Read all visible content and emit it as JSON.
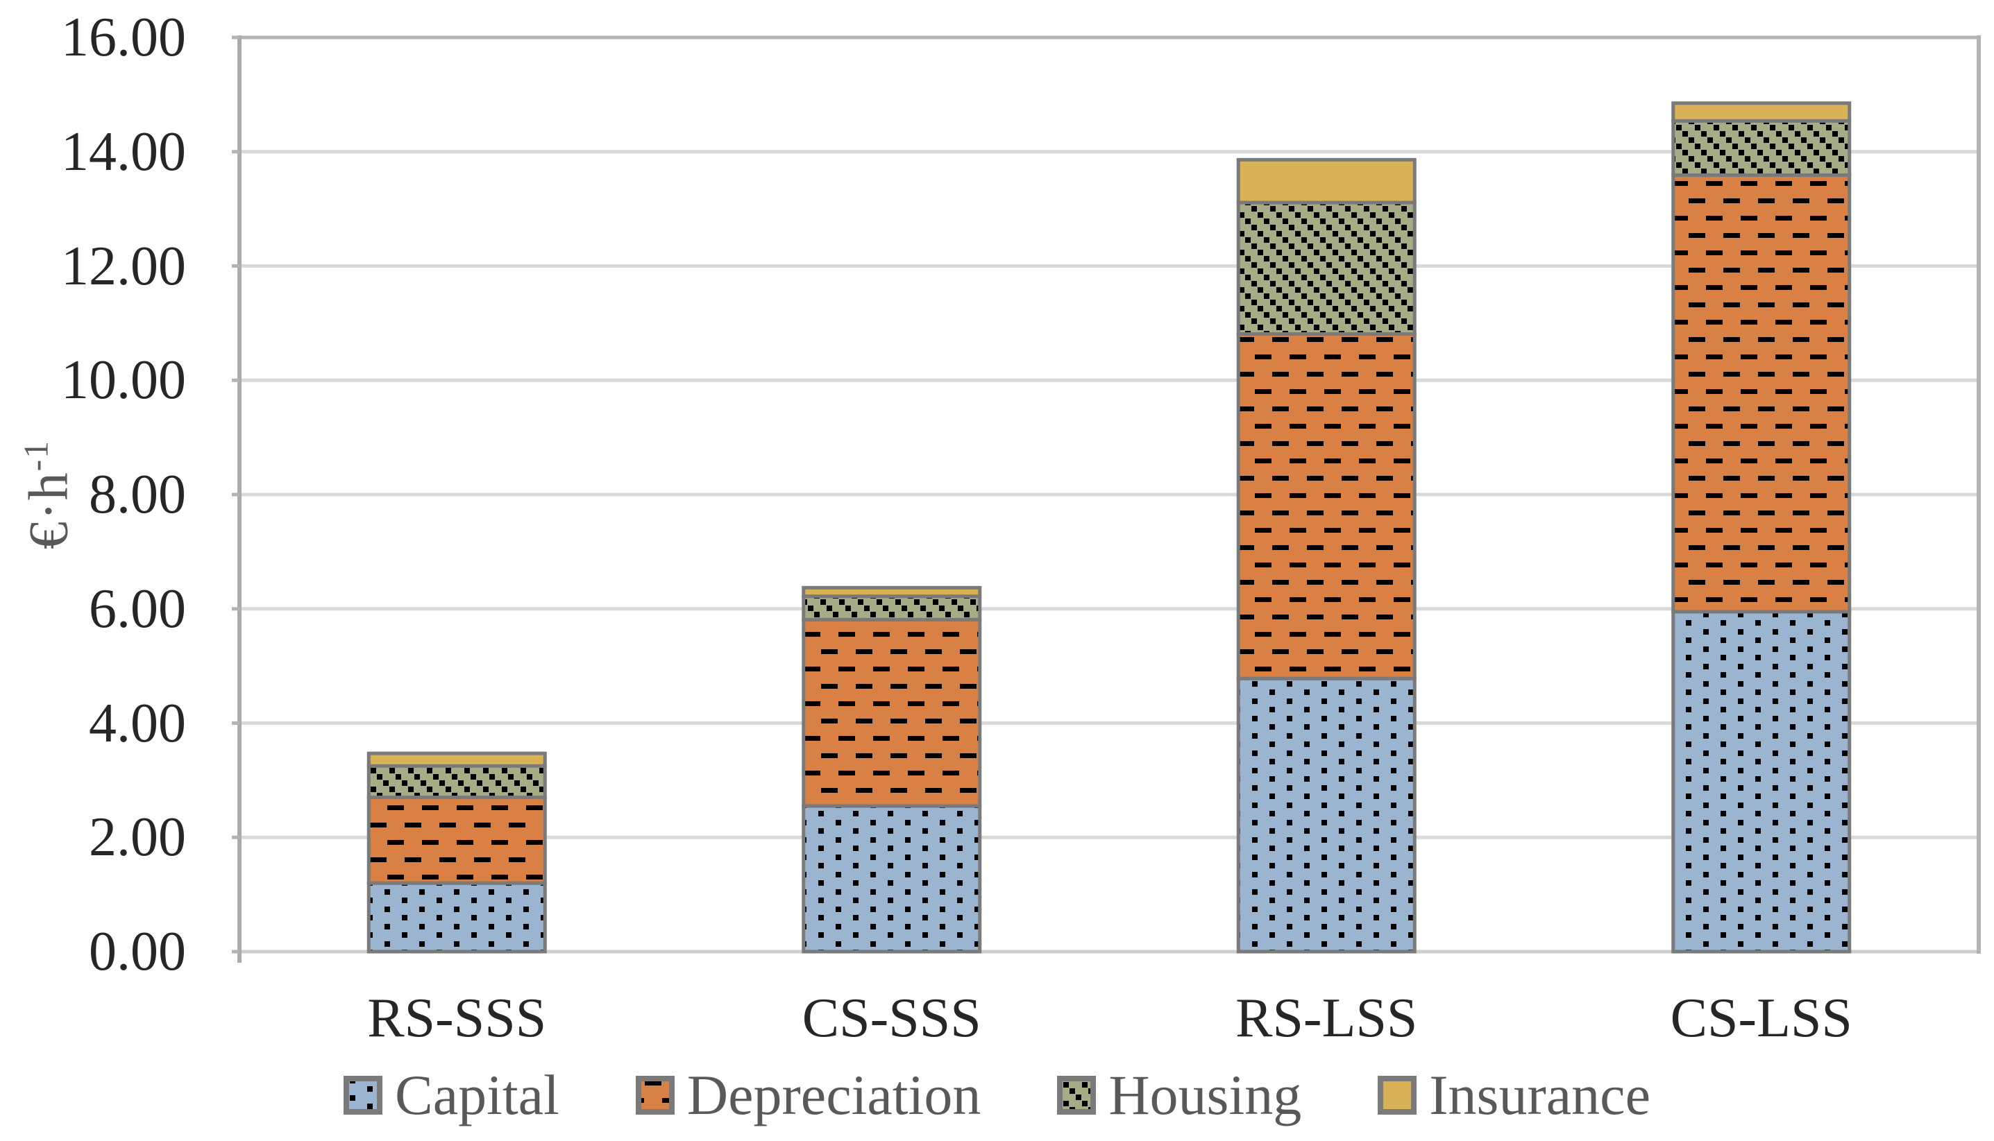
{
  "chart_data": {
    "type": "bar",
    "subtype": "stacked-column",
    "title": "",
    "ylabel_base": "€·h",
    "ylabel_sup": "-1",
    "categories": [
      "RS-SSS",
      "CS-SSS",
      "RS-LSS",
      "CS-LSS"
    ],
    "series": [
      {
        "name": "Capital",
        "pattern": "dots",
        "color": "#9BB4CF",
        "values": [
          1.2,
          2.55,
          4.78,
          5.95
        ]
      },
      {
        "name": "Depreciation",
        "pattern": "dashes",
        "color": "#D98144",
        "values": [
          1.5,
          3.26,
          6.03,
          7.64
        ]
      },
      {
        "name": "Housing",
        "pattern": "diagonal",
        "color": "#A6AC86",
        "values": [
          0.55,
          0.41,
          2.3,
          0.95
        ]
      },
      {
        "name": "Insurance",
        "pattern": "solid",
        "color": "#D9B258",
        "values": [
          0.22,
          0.15,
          0.75,
          0.31
        ]
      }
    ],
    "totals": [
      3.47,
      6.37,
      13.86,
      14.85
    ],
    "ylim": [
      0,
      16
    ],
    "ytick_step": 2,
    "y_ticks": [
      "0.00",
      "2.00",
      "4.00",
      "6.00",
      "8.00",
      "10.00",
      "12.00",
      "14.00",
      "16.00"
    ],
    "grid": true,
    "legend_position": "bottom"
  },
  "colors": {
    "gridline": "#D9D9D9",
    "plot_frame": "#B3B3B3",
    "left_axis": "#ABABAB",
    "bottom_axis": "#CDCDCD",
    "segment_border": "#7A7A7A",
    "tick_text": "#262626",
    "secondary_text": "#595959",
    "pattern_mark": "#000000"
  }
}
